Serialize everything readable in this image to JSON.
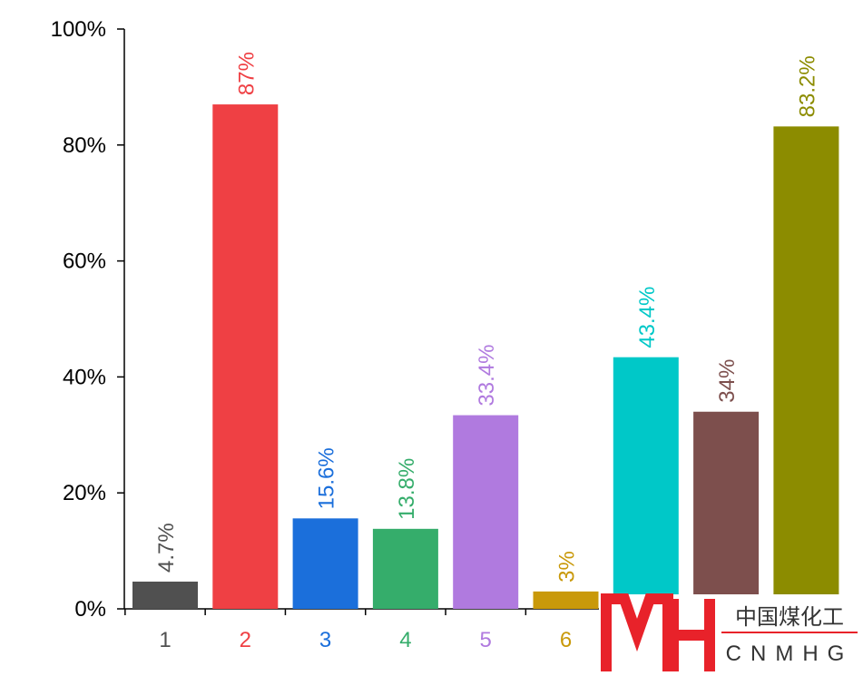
{
  "chart_data": {
    "type": "bar",
    "categories": [
      "1",
      "2",
      "3",
      "4",
      "5",
      "6",
      null,
      null,
      null
    ],
    "values": [
      4.7,
      87,
      15.6,
      13.8,
      33.4,
      3,
      43.4,
      34,
      83.2
    ],
    "value_labels": [
      "4.7%",
      "87%",
      "15.6%",
      "13.8%",
      "33.4%",
      "3%",
      "43.4%",
      "34%",
      "83.2%"
    ],
    "colors": [
      "#505050",
      "#ef4044",
      "#1b6fdb",
      "#35ad6b",
      "#b07adf",
      "#c9990a",
      "#00c8c8",
      "#7d4f4d",
      "#8c8c00"
    ],
    "ylim": [
      0,
      100
    ],
    "yticks": [
      {
        "value": 0,
        "label": "0%"
      },
      {
        "value": 20,
        "label": "20%"
      },
      {
        "value": 40,
        "label": "40%"
      },
      {
        "value": 60,
        "label": "60%"
      },
      {
        "value": 80,
        "label": "80%"
      },
      {
        "value": 100,
        "label": "100%"
      }
    ],
    "grid": false
  },
  "watermark": {
    "title": "中国煤化工",
    "subtitle": "CNMHG"
  }
}
